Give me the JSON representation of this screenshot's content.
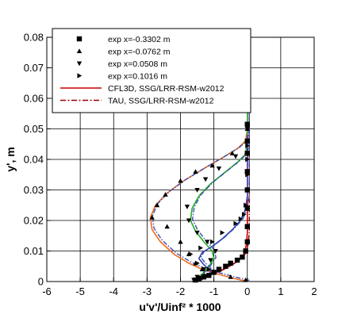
{
  "chart_data": {
    "type": "line",
    "xlabel": "u'v'/Uinf² * 1000",
    "ylabel": "y', m",
    "xlim": [
      -6,
      2
    ],
    "ylim": [
      0,
      0.08
    ],
    "xticks": [
      -6,
      -5,
      -4,
      -3,
      -2,
      -1,
      0,
      1,
      2
    ],
    "yticks": [
      0,
      0.01,
      0.02,
      0.03,
      0.04,
      0.05,
      0.06,
      0.07,
      0.08
    ],
    "xtick_labels": [
      "-6",
      "-5",
      "-4",
      "-3",
      "-2",
      "-1",
      "0",
      "1",
      "2"
    ],
    "ytick_labels": [
      "0",
      "0.01",
      "0.02",
      "0.03",
      "0.04",
      "0.05",
      "0.06",
      "0.07",
      "0.08"
    ],
    "grid": true,
    "legend_position": "top",
    "legend": [
      {
        "label": "exp x=-0.3302 m",
        "style": "marker",
        "marker": "square"
      },
      {
        "label": "exp x=-0.0762 m",
        "style": "marker",
        "marker": "triangle-up"
      },
      {
        "label": "exp x=0.0508 m",
        "style": "marker",
        "marker": "triangle-down"
      },
      {
        "label": "exp x=0.1016 m",
        "style": "marker",
        "marker": "triangle-right"
      },
      {
        "label": "CFL3D, SSG/LRR-RSM-w2012",
        "style": "solid",
        "color": "#cc0000"
      },
      {
        "label": "TAU, SSG/LRR-RSM-w2012",
        "style": "dashdot",
        "color": "#990000"
      }
    ],
    "experimental": [
      {
        "marker": "square",
        "color": "#000000",
        "points": [
          [
            -1.55,
            0.0005
          ],
          [
            -1.45,
            0.001
          ],
          [
            -1.3,
            0.0015
          ],
          [
            -1.15,
            0.002
          ],
          [
            -1.0,
            0.003
          ],
          [
            -0.85,
            0.004
          ],
          [
            -0.65,
            0.005
          ],
          [
            -0.5,
            0.006
          ],
          [
            -0.3,
            0.007
          ],
          [
            -0.15,
            0.008
          ],
          [
            -0.05,
            0.01
          ],
          [
            0.0,
            0.013
          ],
          [
            0.0,
            0.018
          ],
          [
            0.0,
            0.024
          ],
          [
            0.0,
            0.03
          ],
          [
            0.0,
            0.036
          ],
          [
            0.0,
            0.042
          ],
          [
            0.0,
            0.046
          ],
          [
            0.0,
            0.0515
          ]
        ]
      },
      {
        "marker": "triangle-up",
        "color": "#000000",
        "points": [
          [
            -0.05,
            0.0005
          ],
          [
            -0.5,
            0.0015
          ],
          [
            -1.0,
            0.003
          ],
          [
            -1.35,
            0.004
          ],
          [
            -1.55,
            0.006
          ],
          [
            -1.75,
            0.009
          ],
          [
            -2.0,
            0.013
          ],
          [
            -2.4,
            0.018
          ],
          [
            -2.85,
            0.021
          ],
          [
            -2.7,
            0.025
          ],
          [
            -2.45,
            0.0285
          ],
          [
            -2.0,
            0.033
          ],
          [
            -1.55,
            0.036
          ],
          [
            -1.05,
            0.038
          ],
          [
            -0.45,
            0.042
          ],
          [
            0.0,
            0.046
          ],
          [
            0.0,
            0.05
          ]
        ]
      },
      {
        "marker": "triangle-down",
        "color": "#000000",
        "points": [
          [
            -1.6,
            0.0005
          ],
          [
            -1.5,
            0.0015
          ],
          [
            -1.3,
            0.004
          ],
          [
            -1.1,
            0.007
          ],
          [
            -0.95,
            0.01
          ],
          [
            -1.2,
            0.013
          ],
          [
            -1.5,
            0.016
          ],
          [
            -1.75,
            0.02
          ],
          [
            -1.8,
            0.0245
          ],
          [
            -1.5,
            0.03
          ],
          [
            -1.25,
            0.0335
          ],
          [
            -0.85,
            0.037
          ],
          [
            -0.35,
            0.041
          ],
          [
            0.0,
            0.046
          ],
          [
            0.0,
            0.05
          ]
        ]
      },
      {
        "marker": "triangle-right",
        "color": "#000000",
        "points": [
          [
            -1.55,
            0.0005
          ],
          [
            -1.25,
            0.002
          ],
          [
            -1.15,
            0.004
          ],
          [
            -1.5,
            0.006
          ],
          [
            -1.7,
            0.009
          ],
          [
            -1.4,
            0.011
          ],
          [
            -1.05,
            0.013
          ],
          [
            -0.75,
            0.016
          ],
          [
            -0.35,
            0.019
          ],
          [
            -0.2,
            0.0205
          ],
          [
            -0.1,
            0.022
          ],
          [
            -0.05,
            0.025
          ],
          [
            0.0,
            0.03
          ],
          [
            0.0,
            0.035
          ],
          [
            0.0,
            0.04
          ],
          [
            0.0,
            0.0445
          ]
        ]
      }
    ],
    "cfd": [
      {
        "station": "exp x=-0.3302 m",
        "color": "#cc0000",
        "color_dash": "#8b0000",
        "points": [
          [
            -1.65,
            0.0
          ],
          [
            -1.45,
            0.0008
          ],
          [
            -1.2,
            0.0018
          ],
          [
            -0.95,
            0.0028
          ],
          [
            -0.7,
            0.004
          ],
          [
            -0.45,
            0.0055
          ],
          [
            -0.25,
            0.007
          ],
          [
            -0.1,
            0.009
          ],
          [
            -0.03,
            0.012
          ],
          [
            0.0,
            0.016
          ],
          [
            0.0,
            0.022
          ],
          [
            0.0,
            0.028
          ],
          [
            0.0,
            0.034
          ],
          [
            0.0,
            0.04
          ],
          [
            0.0,
            0.046
          ],
          [
            0.0,
            0.054
          ],
          [
            0.0,
            0.06
          ]
        ]
      },
      {
        "station": "exp x=-0.0762 m",
        "color": "#f26b1d",
        "color_dash": "#3a4fb0",
        "points": [
          [
            0.0,
            0.0
          ],
          [
            -0.4,
            0.001
          ],
          [
            -0.9,
            0.0025
          ],
          [
            -1.35,
            0.004
          ],
          [
            -1.75,
            0.006
          ],
          [
            -2.2,
            0.009
          ],
          [
            -2.6,
            0.013
          ],
          [
            -2.85,
            0.017
          ],
          [
            -2.9,
            0.021
          ],
          [
            -2.75,
            0.025
          ],
          [
            -2.4,
            0.029
          ],
          [
            -1.9,
            0.033
          ],
          [
            -1.3,
            0.037
          ],
          [
            -0.75,
            0.0405
          ],
          [
            -0.3,
            0.0435
          ],
          [
            -0.05,
            0.046
          ],
          [
            0.0,
            0.05
          ],
          [
            0.0,
            0.06
          ]
        ]
      },
      {
        "station": "exp x=0.0508 m",
        "color": "#22b022",
        "color_dash": "#3a4fb0",
        "points": [
          [
            -1.55,
            0.0
          ],
          [
            -1.45,
            0.0015
          ],
          [
            -1.3,
            0.003
          ],
          [
            -1.15,
            0.005
          ],
          [
            -1.0,
            0.0075
          ],
          [
            -1.05,
            0.01
          ],
          [
            -1.3,
            0.013
          ],
          [
            -1.55,
            0.0165
          ],
          [
            -1.7,
            0.02
          ],
          [
            -1.65,
            0.024
          ],
          [
            -1.45,
            0.028
          ],
          [
            -1.1,
            0.032
          ],
          [
            -0.7,
            0.0355
          ],
          [
            -0.3,
            0.039
          ],
          [
            -0.07,
            0.0415
          ],
          [
            0.0,
            0.045
          ],
          [
            0.0,
            0.06
          ]
        ]
      },
      {
        "station": "exp x=0.1016 m",
        "color": "#2e3fb0",
        "color_dash": "#3a4fb0",
        "points": [
          [
            -1.45,
            0.0
          ],
          [
            -1.3,
            0.001
          ],
          [
            -1.15,
            0.002
          ],
          [
            -1.1,
            0.0035
          ],
          [
            -1.3,
            0.0055
          ],
          [
            -1.45,
            0.0075
          ],
          [
            -1.35,
            0.0095
          ],
          [
            -1.05,
            0.0115
          ],
          [
            -0.75,
            0.014
          ],
          [
            -0.45,
            0.017
          ],
          [
            -0.2,
            0.02
          ],
          [
            -0.06,
            0.0235
          ],
          [
            0.0,
            0.028
          ],
          [
            0.0,
            0.035
          ],
          [
            0.0,
            0.042
          ],
          [
            0.0,
            0.048
          ]
        ]
      }
    ]
  }
}
